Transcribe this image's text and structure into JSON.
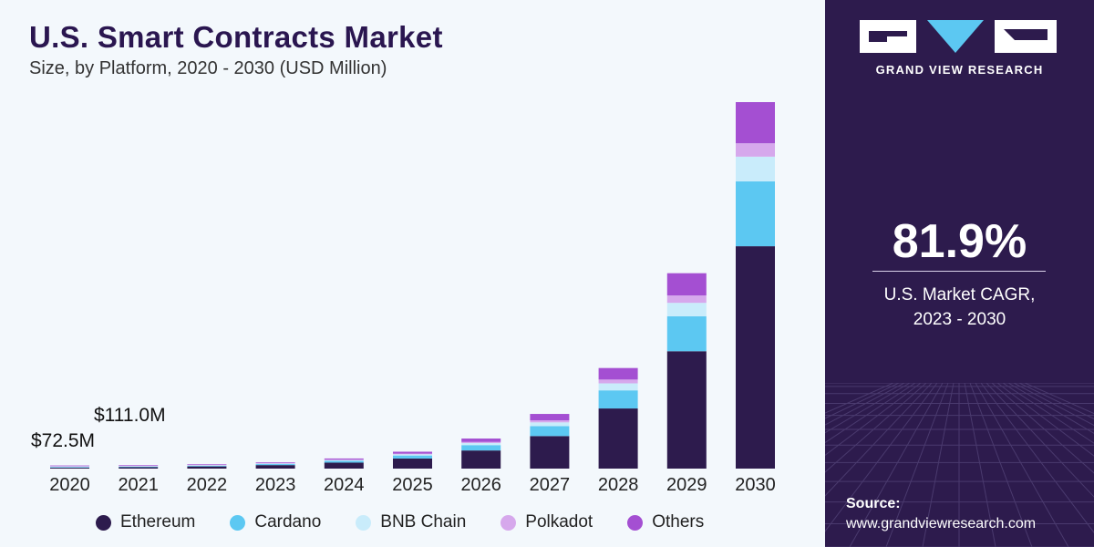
{
  "header": {
    "title": "U.S. Smart Contracts Market",
    "subtitle": "Size, by Platform, 2020 - 2030 (USD Million)"
  },
  "annotations": {
    "label_2020": "$72.5M",
    "label_2021": "$111.0M"
  },
  "sidebar": {
    "brand": "GRAND VIEW RESEARCH",
    "cagr_value": "81.9%",
    "cagr_label_line1": "U.S. Market CAGR,",
    "cagr_label_line2": "2023 - 2030",
    "source_label": "Source:",
    "source_url": "www.grandviewresearch.com"
  },
  "colors": {
    "Ethereum": "#2d1b4d",
    "Cardano": "#5cc8f2",
    "BNB Chain": "#c9ecfb",
    "Polkadot": "#d6a8ec",
    "Others": "#a44fd2"
  },
  "chart_data": {
    "type": "bar",
    "stacked": true,
    "title": "U.S. Smart Contracts Market",
    "subtitle": "Size, by Platform, 2020 - 2030 (USD Million)",
    "categories": [
      "2020",
      "2021",
      "2022",
      "2023",
      "2024",
      "2025",
      "2026",
      "2027",
      "2028",
      "2029",
      "2030"
    ],
    "series": [
      {
        "name": "Ethereum",
        "values": [
          43.5,
          66.6,
          105,
          170,
          290,
          490,
          880,
          1580,
          2920,
          5700,
          10800
        ]
      },
      {
        "name": "Cardano",
        "values": [
          13.0,
          20.0,
          31,
          50,
          85,
          145,
          260,
          480,
          880,
          1700,
          3150
        ]
      },
      {
        "name": "BNB Chain",
        "values": [
          5.1,
          7.8,
          12,
          20,
          34,
          58,
          100,
          185,
          340,
          650,
          1200
        ]
      },
      {
        "name": "Polkadot",
        "values": [
          2.9,
          4.4,
          7,
          11,
          19,
          32,
          55,
          100,
          185,
          360,
          650
        ]
      },
      {
        "name": "Others",
        "values": [
          8.0,
          12.2,
          20,
          33,
          55,
          95,
          165,
          310,
          560,
          1080,
          2000
        ]
      }
    ],
    "data_labels": {
      "2020": "$72.5M",
      "2021": "$111.0M"
    },
    "legend": "bottom",
    "grid": false
  }
}
